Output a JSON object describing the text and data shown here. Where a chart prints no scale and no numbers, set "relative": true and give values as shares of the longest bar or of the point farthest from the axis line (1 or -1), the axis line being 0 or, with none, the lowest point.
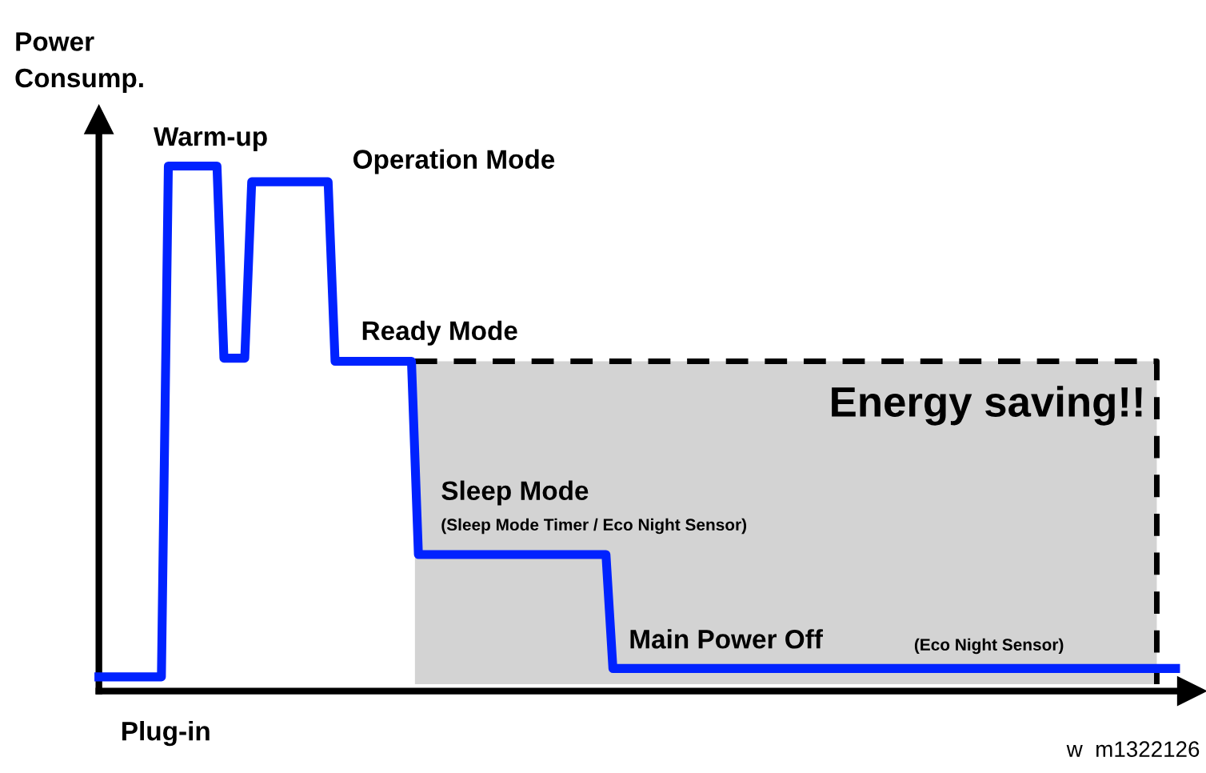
{
  "chart_data": {
    "type": "line",
    "relative": true,
    "ylabel": "Power\nConsump.",
    "categories": [
      null,
      null,
      null,
      null,
      null,
      null,
      null,
      null,
      null,
      null,
      null,
      null,
      null,
      null,
      null,
      null,
      null,
      null,
      null,
      null,
      null,
      null,
      null,
      null,
      null,
      null,
      null,
      null,
      null,
      null,
      null,
      null,
      null,
      null,
      null,
      null,
      null,
      null,
      null,
      null,
      null,
      null,
      null,
      null,
      null,
      null,
      null,
      null,
      null,
      null,
      null,
      null,
      null,
      null,
      null,
      null,
      null,
      null,
      null,
      null,
      null,
      null,
      null,
      null,
      null,
      null,
      null,
      null,
      null,
      null,
      null,
      null,
      null,
      null,
      null,
      null,
      null,
      null,
      null,
      null,
      null,
      null,
      null,
      null,
      null,
      null,
      null,
      null,
      null,
      null,
      null,
      null,
      null,
      null,
      null,
      null,
      null,
      null,
      null,
      null,
      null,
      null,
      null,
      null,
      null,
      null,
      null,
      null,
      null,
      null,
      null,
      null,
      null,
      null,
      null,
      null,
      null,
      null,
      null,
      null,
      null,
      null,
      null,
      null,
      null,
      null,
      null,
      null,
      null,
      null,
      null,
      null,
      null,
      null,
      null,
      null,
      null,
      null,
      null,
      null,
      null,
      null,
      null,
      null,
      null,
      null,
      null,
      null,
      null,
      null,
      null,
      null,
      null,
      null,
      null,
      null
    ],
    "series": [
      {
        "color": "#0022ff",
        "values": [
          0.027,
          0.027,
          0.027,
          0.027,
          0.027,
          0.027,
          0.027,
          0.027,
          0.027,
          0.027,
          1,
          1,
          1,
          1,
          1,
          1,
          1,
          1,
          0.634,
          0.634,
          0.634,
          0.634,
          0.97,
          0.97,
          0.97,
          0.97,
          0.97,
          0.97,
          0.97,
          0.97,
          0.97,
          0.97,
          0.97,
          0.97,
          0.628,
          0.628,
          0.628,
          0.628,
          0.628,
          0.628,
          0.628,
          0.628,
          0.628,
          0.628,
          0.628,
          0.628,
          0.26,
          0.26,
          0.26,
          0.26,
          0.26,
          0.26,
          0.26,
          0.26,
          0.26,
          0.26,
          0.26,
          0.26,
          0.26,
          0.26,
          0.26,
          0.26,
          0.26,
          0.26,
          0.26,
          0.26,
          0.26,
          0.26,
          0.26,
          0.26,
          0.26,
          0.26,
          0.26,
          0.26,
          0.043,
          0.043,
          0.043,
          0.043,
          0.043,
          0.043,
          0.043,
          0.043,
          0.043,
          0.043,
          0.043,
          0.043,
          0.043,
          0.043,
          0.043,
          0.043,
          0.043,
          0.043,
          0.043,
          0.043,
          0.043,
          0.043,
          0.043,
          0.043,
          0.043,
          0.043,
          0.043,
          0.043,
          0.043,
          0.043,
          0.043,
          0.043,
          0.043,
          0.043,
          0.043,
          0.043,
          0.043,
          0.043,
          0.043,
          0.043,
          0.043,
          0.043,
          0.043,
          0.043,
          0.043,
          0.043,
          0.043,
          0.043,
          0.043,
          0.043,
          0.043,
          0.043,
          0.043,
          0.043,
          0.043,
          0.043,
          0.043,
          0.043,
          0.043,
          0.043,
          0.043,
          0.043,
          0.043,
          0.043,
          0.043,
          0.043,
          0.043,
          0.043,
          0.043,
          0.043,
          0.043,
          0.043,
          0.043,
          0.043,
          0.043,
          0.043,
          0.043,
          0.043,
          0.043,
          0.043,
          0.043,
          0.043
        ]
      }
    ],
    "annotations": [
      "Warm-up",
      "Operation Mode",
      "Ready Mode",
      "Energy saving!!",
      "Sleep Mode",
      "(Sleep Mode Timer / Eco Night Sensor)",
      "Main Power Off",
      "(Eco Night Sensor)",
      "Plug-in",
      "w  m1322126"
    ]
  }
}
